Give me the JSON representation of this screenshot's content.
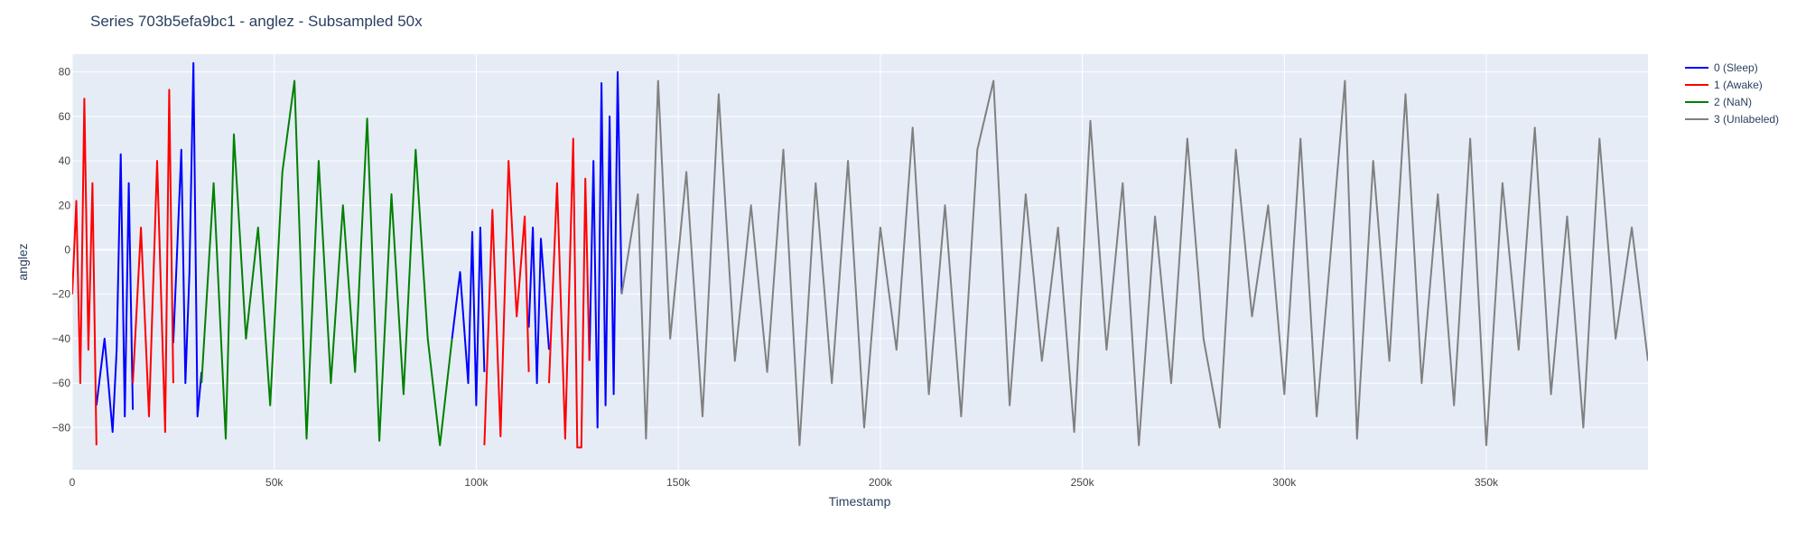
{
  "chart_data": {
    "type": "line",
    "title": "Series 703b5efa9bc1 - anglez - Subsampled 50x",
    "xlabel": "Timestamp",
    "ylabel": "anglez",
    "xlim": [
      0,
      390000
    ],
    "ylim": [
      -99,
      88
    ],
    "x_ticks": [
      0,
      50000,
      100000,
      150000,
      200000,
      250000,
      300000,
      350000
    ],
    "x_tick_labels": [
      "0",
      "50k",
      "100k",
      "150k",
      "200k",
      "250k",
      "300k",
      "350k"
    ],
    "y_ticks": [
      -80,
      -60,
      -40,
      -20,
      0,
      20,
      40,
      60,
      80
    ],
    "y_tick_labels": [
      "−80",
      "−60",
      "−40",
      "−20",
      "0",
      "20",
      "40",
      "60",
      "80"
    ],
    "grid": true,
    "legend_position": "top-right",
    "legend": [
      {
        "label": "0 (Sleep)",
        "color": "#0000ff"
      },
      {
        "label": "1 (Awake)",
        "color": "#ff0000"
      },
      {
        "label": "2 (NaN)",
        "color": "#008000"
      },
      {
        "label": "3 (Unlabeled)",
        "color": "#808080"
      }
    ],
    "series": [
      {
        "name": "0 (Sleep)",
        "color": "#0000ff",
        "segments": [
          {
            "x": [
              6000,
              8000,
              10000,
              11000,
              12000,
              13000,
              14000,
              15000
            ],
            "y": [
              -70,
              -40,
              -82,
              -45,
              43,
              -75,
              30,
              -72
            ]
          },
          {
            "x": [
              25000,
              27000,
              28000,
              29000,
              30000,
              31000,
              32000
            ],
            "y": [
              -42,
              45,
              -60,
              -10,
              84,
              -75,
              -55
            ]
          },
          {
            "x": [
              94000,
              96000,
              98000,
              99000,
              100000,
              101000,
              102000
            ],
            "y": [
              -40,
              -10,
              -60,
              8,
              -70,
              10,
              -55
            ]
          },
          {
            "x": [
              113000,
              114000,
              115000,
              116000,
              117000,
              118000
            ],
            "y": [
              -35,
              10,
              -60,
              5,
              -20,
              -45
            ]
          },
          {
            "x": [
              128000,
              129000,
              130000,
              131000,
              132000,
              133000,
              134000,
              135000,
              136000
            ],
            "y": [
              -50,
              40,
              -80,
              75,
              -70,
              60,
              -65,
              80,
              -20
            ]
          }
        ]
      },
      {
        "name": "1 (Awake)",
        "color": "#ff0000",
        "segments": [
          {
            "x": [
              0,
              1000,
              2000,
              3000,
              4000,
              5000,
              6000
            ],
            "y": [
              -20,
              22,
              -60,
              68,
              -45,
              30,
              -88
            ]
          },
          {
            "x": [
              15000,
              17000,
              19000,
              21000,
              23000,
              24000,
              25000
            ],
            "y": [
              -60,
              10,
              -75,
              40,
              -82,
              72,
              -60
            ]
          },
          {
            "x": [
              102000,
              104000,
              106000,
              108000,
              110000,
              112000,
              113000
            ],
            "y": [
              -88,
              18,
              -84,
              40,
              -30,
              15,
              -55
            ]
          },
          {
            "x": [
              118000,
              120000,
              122000,
              124000,
              125000,
              126000,
              127000,
              128000
            ],
            "y": [
              -60,
              30,
              -85,
              50,
              -89,
              -89,
              32,
              -50
            ]
          }
        ]
      },
      {
        "name": "2 (NaN)",
        "color": "#008000",
        "segments": [
          {
            "x": [
              32000,
              35000,
              38000,
              40000,
              43000,
              46000,
              49000,
              52000,
              55000,
              58000,
              61000,
              64000,
              67000,
              70000,
              73000,
              76000,
              79000,
              82000,
              85000,
              88000,
              91000,
              94000
            ],
            "y": [
              -60,
              30,
              -85,
              52,
              -40,
              10,
              -70,
              35,
              76,
              -85,
              40,
              -60,
              20,
              -55,
              59,
              -86,
              25,
              -65,
              45,
              -40,
              -88,
              -40
            ]
          }
        ]
      },
      {
        "name": "3 (Unlabeled)",
        "color": "#808080",
        "segments": [
          {
            "x": [
              136000,
              140000,
              142000,
              145000,
              148000,
              152000,
              156000,
              160000,
              164000,
              168000,
              172000,
              176000,
              180000,
              184000,
              188000,
              192000,
              196000,
              200000,
              204000,
              208000,
              212000,
              216000,
              220000,
              224000,
              228000,
              232000,
              236000,
              240000,
              244000,
              248000,
              252000,
              256000,
              260000,
              264000,
              268000,
              272000,
              276000,
              280000,
              284000,
              288000,
              292000,
              296000,
              300000,
              304000,
              308000,
              312000,
              315000,
              318000,
              322000,
              326000,
              330000,
              334000,
              338000,
              342000,
              346000,
              350000,
              354000,
              358000,
              362000,
              366000,
              370000,
              374000,
              378000,
              382000,
              386000,
              390000
            ],
            "y": [
              -20,
              25,
              -85,
              76,
              -40,
              35,
              -75,
              70,
              -50,
              20,
              -55,
              45,
              -88,
              30,
              -60,
              40,
              -80,
              10,
              -45,
              55,
              -65,
              20,
              -75,
              45,
              76,
              -70,
              25,
              -50,
              10,
              -82,
              58,
              -45,
              30,
              -88,
              15,
              -60,
              50,
              -40,
              -80,
              45,
              -30,
              20,
              -65,
              50,
              -75,
              10,
              76,
              -85,
              40,
              -50,
              70,
              -60,
              25,
              -70,
              50,
              -88,
              30,
              -45,
              55,
              -65,
              15,
              -80,
              50,
              -40,
              10,
              -50
            ]
          }
        ]
      }
    ]
  }
}
